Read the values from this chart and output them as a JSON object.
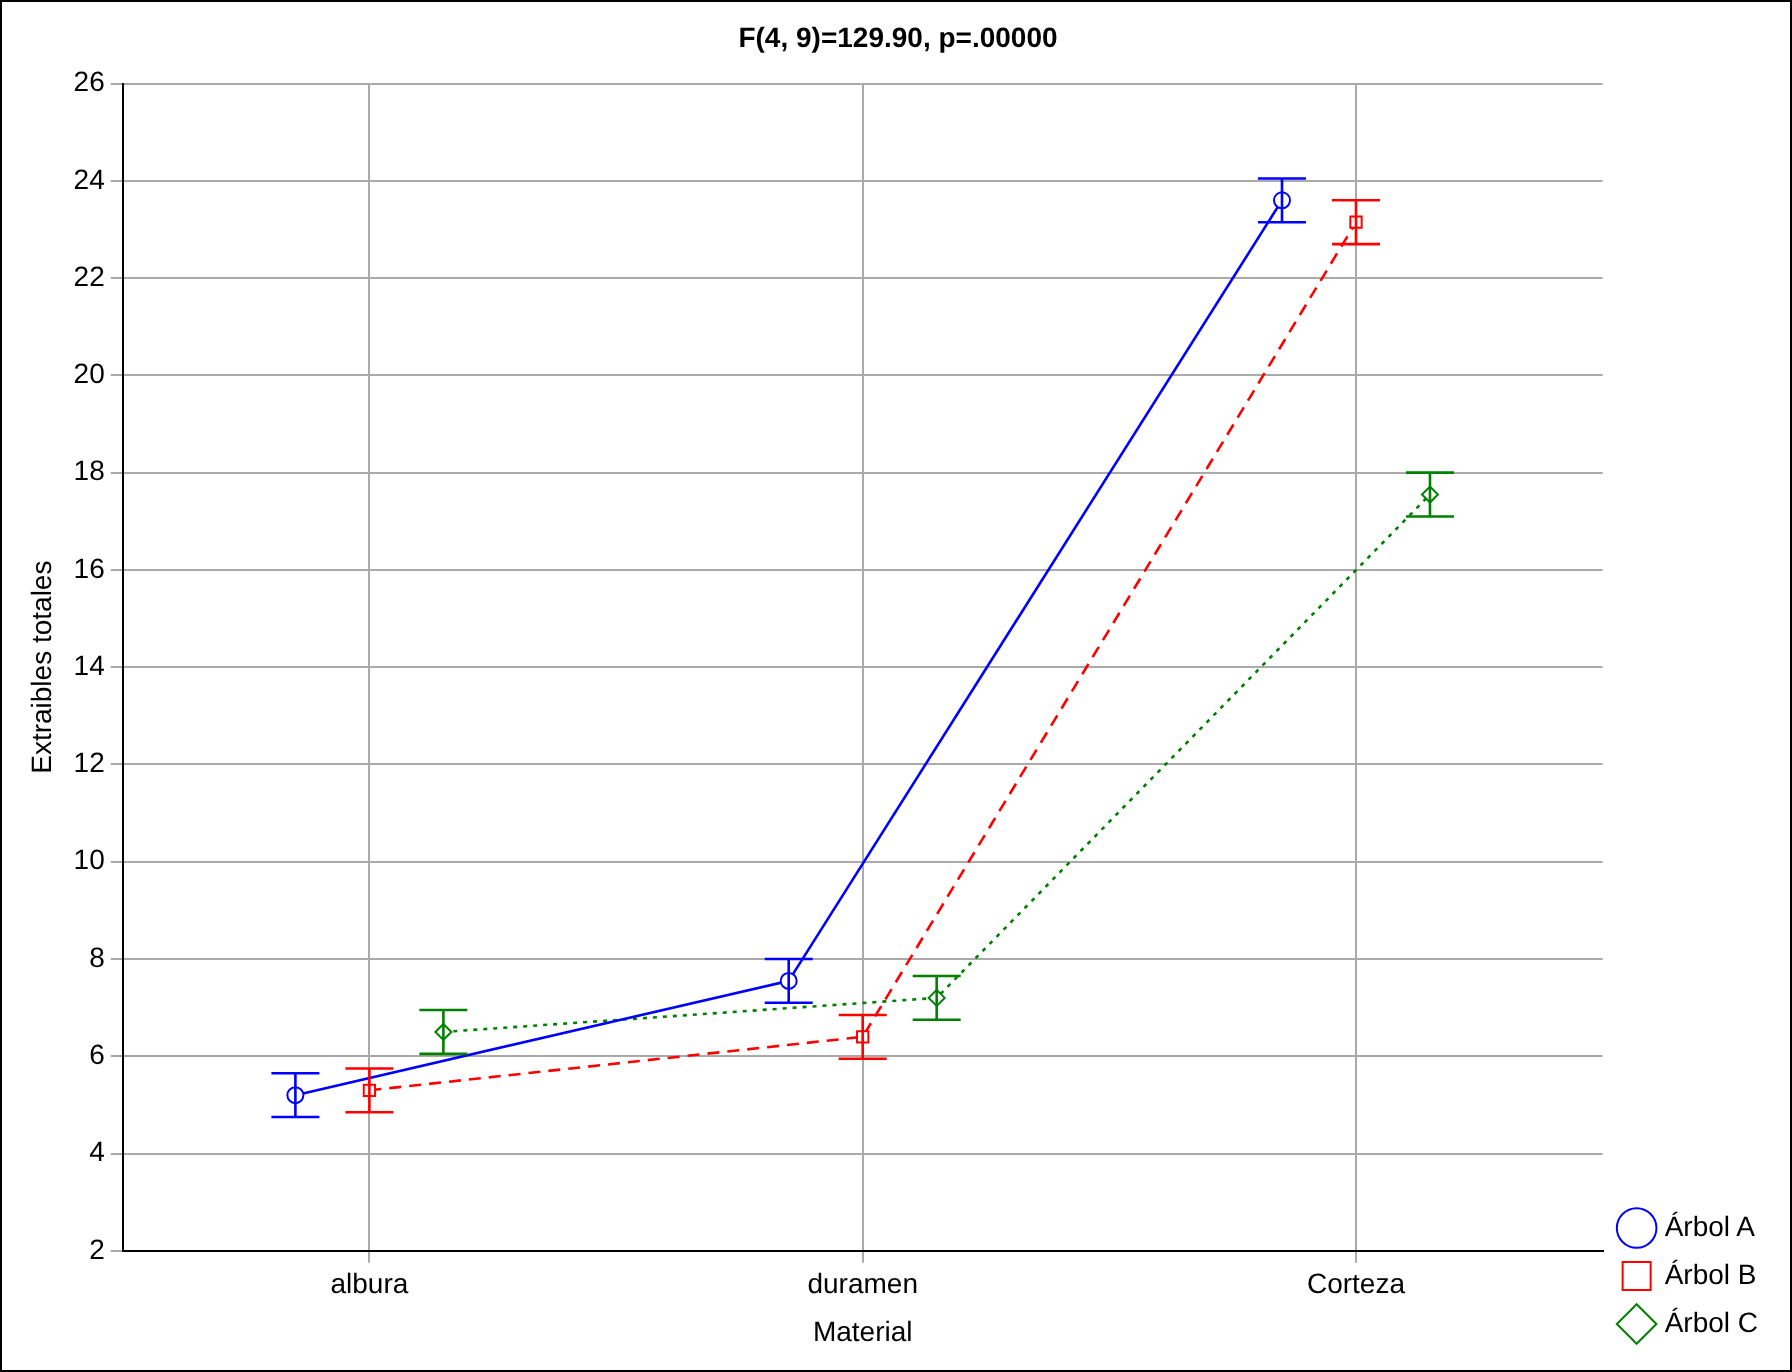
{
  "chart_data": {
    "type": "line",
    "title": "F(4, 9)=129.90, p=.00000",
    "xlabel": "Material",
    "ylabel": "Extraibles totales",
    "categories": [
      "albura",
      "duramen",
      "Corteza"
    ],
    "series": [
      {
        "name": "Árbol A",
        "color": "#0000ff",
        "values": [
          5.2,
          7.55,
          23.6
        ],
        "errors": [
          0.45,
          0.45,
          0.45
        ],
        "marker": "circle",
        "line_style": "solid"
      },
      {
        "name": "Árbol B",
        "color": "#ff0000",
        "values": [
          5.3,
          6.4,
          23.15
        ],
        "errors": [
          0.45,
          0.45,
          0.45
        ],
        "marker": "square",
        "line_style": "dashed"
      },
      {
        "name": "Árbol C",
        "color": "#008000",
        "values": [
          6.5,
          7.2,
          17.55
        ],
        "errors": [
          0.45,
          0.45,
          0.45
        ],
        "marker": "diamond",
        "line_style": "dotted"
      }
    ],
    "ylim": [
      2,
      26
    ],
    "yticks": [
      2,
      4,
      6,
      8,
      10,
      12,
      14,
      16,
      18,
      20,
      22,
      24,
      26
    ],
    "grid": true,
    "legend": "bottom right"
  }
}
